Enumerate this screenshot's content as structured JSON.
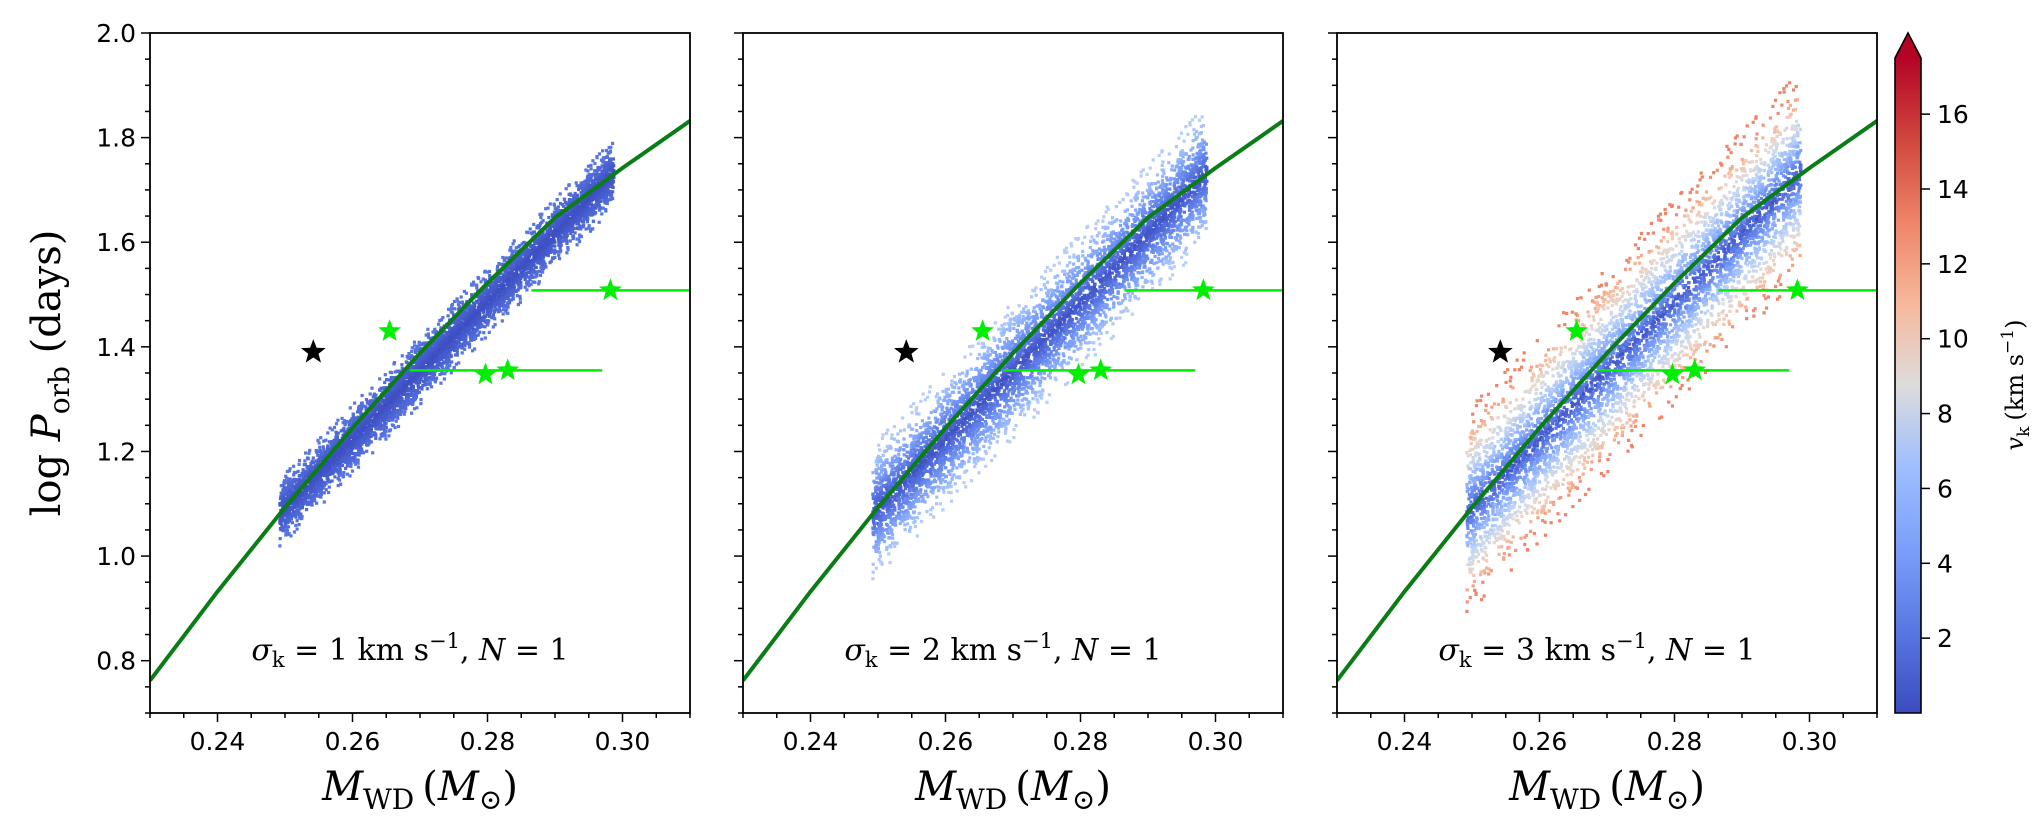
{
  "chart_data": {
    "type": "scatter",
    "layout": "1x3 panels with shared y-axis and colorbar",
    "xlabel": {
      "main": "M",
      "sub": "WD",
      "unit": "M",
      "unit_sub": "⊙"
    },
    "ylabel": {
      "pre": "log ",
      "main": "P",
      "sub": "orb",
      "post": " (days)"
    },
    "xlim": [
      0.23,
      0.31
    ],
    "ylim": [
      0.7,
      2.0
    ],
    "xticks": [
      "0.24",
      "0.26",
      "0.28",
      "0.30"
    ],
    "yticks": [
      "0.8",
      "1.0",
      "1.2",
      "1.4",
      "1.6",
      "1.8",
      "2.0"
    ],
    "colorbar": {
      "label": "v",
      "label_sub": "k",
      "label_unit": "(km s",
      "label_exp": "−1",
      "label_close": ")",
      "range": [
        0,
        17.5
      ],
      "ticks": [
        "2",
        "4",
        "6",
        "8",
        "10",
        "12",
        "14",
        "16"
      ],
      "colormap": "coolwarm",
      "extend": "max"
    },
    "theory_curve": {
      "color": "#0a7d16",
      "x": [
        0.23,
        0.24,
        0.25,
        0.26,
        0.27,
        0.28,
        0.29,
        0.3,
        0.31
      ],
      "y": [
        0.762,
        0.932,
        1.093,
        1.245,
        1.388,
        1.522,
        1.647,
        1.742,
        1.832
      ]
    },
    "observed_black_star": {
      "x": 0.2542,
      "y": 1.39,
      "color": "#000000"
    },
    "observed_green_stars": {
      "color": "#00ee00",
      "points": [
        {
          "x": 0.2655,
          "y": 1.43,
          "xerr": null
        },
        {
          "x": 0.2797,
          "y": 1.347,
          "xerr": null
        },
        {
          "x": 0.283,
          "y": 1.355,
          "xerr": [
            0.2685,
            0.297
          ]
        },
        {
          "x": 0.2982,
          "y": 1.508,
          "xerr": [
            0.2865,
            0.31
          ]
        }
      ]
    },
    "simulated_band": {
      "mass_range": [
        0.249,
        0.2985
      ],
      "curve_ref": {
        "m0": 0.249,
        "m1": 0.2985,
        "y0": 1.085,
        "y1": 1.735
      }
    },
    "panels": [
      {
        "sigma": "1",
        "N": "1",
        "halfwidth": 0.055,
        "vmax": 1.8,
        "annotation": {
          "sym": "σ",
          "sub": "k",
          "eq": " = ",
          "value_sigma": "1 km s",
          "exp": "−1",
          "comma": ", ",
          "Nsym": "N",
          "Neq": " = ",
          "Nval": "1"
        }
      },
      {
        "sigma": "2",
        "N": "1",
        "halfwidth": 0.11,
        "vmax": 6.5,
        "annotation": {
          "sym": "σ",
          "sub": "k",
          "eq": " = ",
          "value_sigma": "2 km s",
          "exp": "−1",
          "comma": ", ",
          "Nsym": "N",
          "Neq": " = ",
          "Nval": "1"
        }
      },
      {
        "sigma": "3",
        "N": "1",
        "halfwidth": 0.165,
        "vmax": 14.0,
        "annotation": {
          "sym": "σ",
          "sub": "k",
          "eq": " = ",
          "value_sigma": "3 km s",
          "exp": "−1",
          "comma": ", ",
          "Nsym": "N",
          "Neq": " = ",
          "Nval": "1"
        }
      }
    ]
  }
}
